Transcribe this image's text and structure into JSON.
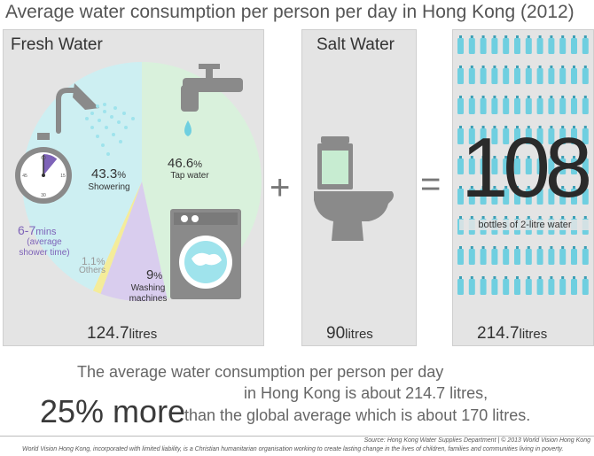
{
  "title": "Average water consumption per person per day in Hong Kong (2012)",
  "colors": {
    "showering": "#cdeff2",
    "tap_water": "#d9f1dc",
    "washing_machines": "#d9cdee",
    "others": "#f4ec9a",
    "panel": "#e4e4e4",
    "bottle": "#6fcfe0",
    "shower_time": "#7e63b8"
  },
  "fresh_water": {
    "title": "Fresh Water",
    "total_value": "124.7",
    "total_unit": "litres",
    "icons": [
      "shower-head-icon",
      "stopwatch-icon",
      "tap-icon",
      "washing-machine-icon"
    ]
  },
  "salt_water": {
    "title": "Salt Water",
    "total_value": "90",
    "total_unit": "litres",
    "icons": [
      "toilet-icon"
    ]
  },
  "total": {
    "bottles_count": "108",
    "bottles_label": "bottles of 2-litre water",
    "total_value": "214.7",
    "total_unit": "litres",
    "icons": [
      "water-bottle-icon"
    ]
  },
  "operators": {
    "plus": "+",
    "equals": "="
  },
  "chart_data": {
    "type": "pie",
    "categories": [
      "Showering",
      "Tap water",
      "Washing machines",
      "Others"
    ],
    "values": [
      43.3,
      46.6,
      9,
      1.1
    ],
    "value_labels": [
      {
        "num": "43.3",
        "unit": "%"
      },
      {
        "num": "46.6",
        "unit": "%"
      },
      {
        "num": "9",
        "unit": "%"
      },
      {
        "num": "1.1",
        "unit": "%"
      }
    ]
  },
  "category_labels": {
    "showering": "Showering",
    "tap_water": "Tap water",
    "washing_line1": "Washing",
    "washing_line2": "machines",
    "others": "Others"
  },
  "shower_time": {
    "value": "6-7",
    "unit": "mins",
    "note_line1": "(average",
    "note_line2": "shower time)",
    "fraction_of_hour": 0.11
  },
  "summary": {
    "line1": "The average water consumption per person per day",
    "line2": "in Hong Kong is about 214.7 litres,",
    "highlight": "25% more",
    "line3": "than the global average which is about 170 litres."
  },
  "source": "Source: Hong Kong Water Supplies Department | © 2013 World Vision Hong Kong",
  "footer": "World Vision Hong Kong, incorporated with limited liability, is a Christian humanitarian organisation working to create lasting change in the lives of children, families and communities living in poverty."
}
